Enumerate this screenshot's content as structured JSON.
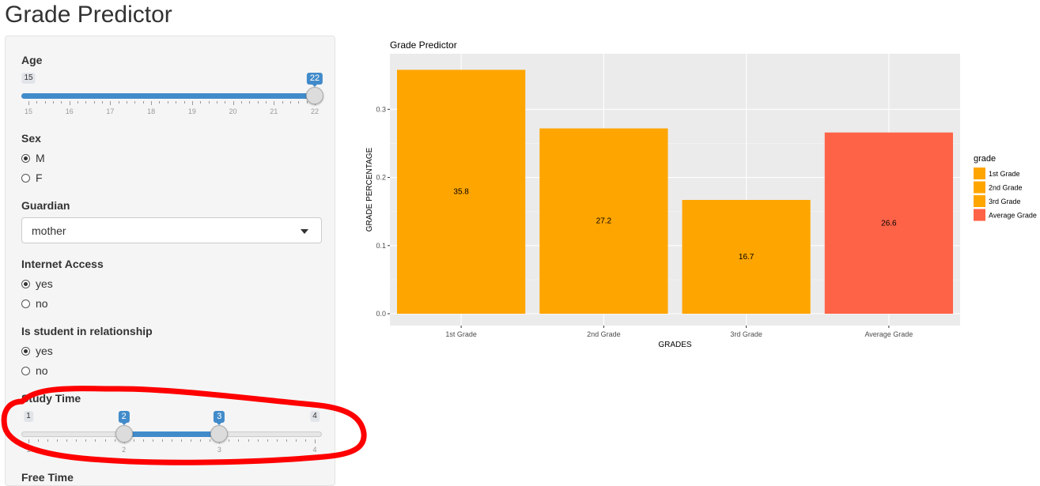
{
  "app": {
    "title": "Grade Predictor"
  },
  "sidebar": {
    "age": {
      "label": "Age",
      "min": 15,
      "max": 22,
      "value": 22,
      "ticks": [
        "15",
        "16",
        "17",
        "18",
        "19",
        "20",
        "21",
        "22"
      ]
    },
    "sex": {
      "label": "Sex",
      "options": [
        {
          "label": "M",
          "checked": true
        },
        {
          "label": "F",
          "checked": false
        }
      ]
    },
    "guardian": {
      "label": "Guardian",
      "selected": "mother"
    },
    "internet": {
      "label": "Internet Access",
      "options": [
        {
          "label": "yes",
          "checked": true
        },
        {
          "label": "no",
          "checked": false
        }
      ]
    },
    "relationship": {
      "label": "Is student in relationship",
      "options": [
        {
          "label": "yes",
          "checked": true
        },
        {
          "label": "no",
          "checked": false
        }
      ]
    },
    "study_time": {
      "label": "Study Time",
      "min": 1,
      "max": 4,
      "from": 2,
      "to": 3,
      "ticks": [
        "1",
        "2",
        "3",
        "4"
      ]
    },
    "next_label": "Free Time"
  },
  "chart_data": {
    "type": "bar",
    "title": "Grade Predictor",
    "xlabel": "GRADES",
    "ylabel": "GRADE PERCENTAGE",
    "categories": [
      "1st Grade",
      "2nd Grade",
      "3rd Grade",
      "Average Grade"
    ],
    "values": [
      0.358,
      0.272,
      0.167,
      0.266
    ],
    "data_labels": [
      "35.8",
      "27.2",
      "16.7",
      "26.6"
    ],
    "colors": [
      "#ffa500",
      "#ffa500",
      "#ffa500",
      "#ff6347"
    ],
    "ylim": [
      0,
      0.37
    ],
    "yticks": [
      0.0,
      0.1,
      0.2,
      0.3
    ],
    "ytick_labels": [
      "0.0",
      "0.1",
      "0.2",
      "0.3"
    ],
    "grid": true,
    "legend": {
      "title": "grade",
      "placement": "right",
      "entries": [
        {
          "label": "1st Grade",
          "color": "#ffa500"
        },
        {
          "label": "2nd Grade",
          "color": "#ffa500"
        },
        {
          "label": "3rd Grade",
          "color": "#ffa500"
        },
        {
          "label": "Average Grade",
          "color": "#ff6347"
        }
      ]
    }
  },
  "colors": {
    "accent": "#428bca",
    "annotation": "#ff0000",
    "panel_bg": "#ebebeb"
  }
}
